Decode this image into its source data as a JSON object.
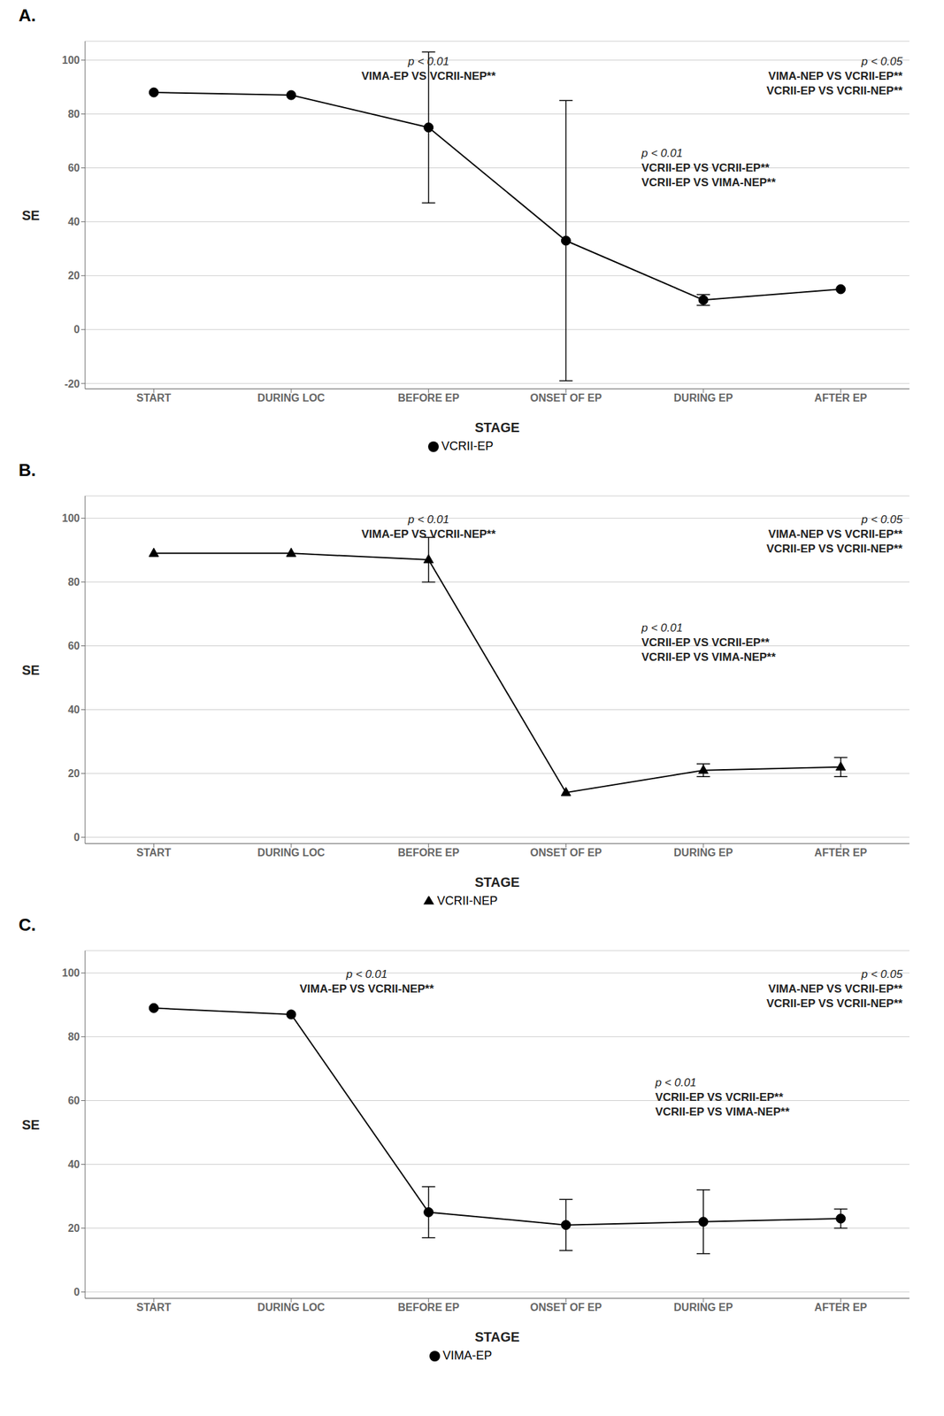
{
  "chart_data": [
    {
      "type": "line",
      "title": "A.",
      "categories": [
        "START",
        "DURING LOC",
        "BEFORE EP",
        "ONSET OF EP",
        "DURING EP",
        "AFTER EP"
      ],
      "series": [
        {
          "name": "VCRII-EP",
          "color": "black",
          "marker": "circle",
          "values": [
            88,
            87,
            75,
            33,
            11,
            15
          ],
          "error_lower": [
            null,
            null,
            28,
            52,
            2,
            null
          ],
          "error_upper": [
            null,
            null,
            28,
            52,
            2,
            null
          ]
        }
      ],
      "xlabel": "STAGE",
      "ylabel": "SE",
      "ylim": [
        -22,
        107
      ],
      "yticks": [
        -20,
        0,
        20,
        40,
        60,
        80,
        100
      ],
      "grid": true,
      "legend": "bottom",
      "annotations": [
        [
          "p < 0.01",
          "VIMA-EP VS VCRII-NEP**"
        ],
        [
          "p < 0.05",
          "VIMA-NEP VS VCRII-EP**",
          "VCRII-EP VS VCRII-NEP**"
        ],
        [
          "p < 0.01",
          "VCRII-EP VS VCRII-EP**",
          "VCRII-EP VS VIMA-NEP**"
        ]
      ]
    },
    {
      "type": "line",
      "title": "B.",
      "categories": [
        "START",
        "DURING LOC",
        "BEFORE EP",
        "ONSET OF EP",
        "DURING EP",
        "AFTER EP"
      ],
      "series": [
        {
          "name": "VCRII-NEP",
          "color": "black",
          "marker": "triangle",
          "values": [
            89,
            89,
            87,
            14,
            21,
            22
          ],
          "error_lower": [
            null,
            null,
            7,
            null,
            2,
            3
          ],
          "error_upper": [
            null,
            null,
            7,
            null,
            2,
            3
          ]
        }
      ],
      "xlabel": "STAGE",
      "ylabel": "SE",
      "ylim": [
        -2,
        107
      ],
      "yticks": [
        0,
        20,
        40,
        60,
        80,
        100
      ],
      "grid": true,
      "legend": "bottom",
      "annotations": [
        [
          "p < 0.01",
          "VIMA-EP VS VCRII-NEP**"
        ],
        [
          "p < 0.05",
          "VIMA-NEP VS VCRII-EP**",
          "VCRII-EP VS VCRII-NEP**"
        ],
        [
          "p < 0.01",
          "VCRII-EP VS VCRII-EP**",
          "VCRII-EP VS VIMA-NEP**"
        ]
      ]
    },
    {
      "type": "line",
      "title": "C.",
      "categories": [
        "START",
        "DURING LOC",
        "BEFORE EP",
        "ONSET OF EP",
        "DURING EP",
        "AFTER EP"
      ],
      "series": [
        {
          "name": "VIMA-EP",
          "color": "black",
          "marker": "circle",
          "values": [
            89,
            87,
            25,
            21,
            22,
            23
          ],
          "error_lower": [
            null,
            null,
            8,
            8,
            10,
            3
          ],
          "error_upper": [
            null,
            null,
            8,
            8,
            10,
            3
          ]
        }
      ],
      "xlabel": "STAGE",
      "ylabel": "SE",
      "ylim": [
        -2,
        107
      ],
      "yticks": [
        0,
        20,
        40,
        60,
        80,
        100
      ],
      "grid": true,
      "legend": "bottom",
      "annotations": [
        [
          "p < 0.01",
          "VIMA-EP VS VCRII-NEP**"
        ],
        [
          "p < 0.05",
          "VIMA-NEP VS VCRII-EP**",
          "VCRII-EP VS VCRII-NEP**"
        ],
        [
          "p < 0.01",
          "VCRII-EP VS VCRII-EP**",
          "VCRII-EP VS VIMA-NEP**"
        ]
      ]
    }
  ]
}
